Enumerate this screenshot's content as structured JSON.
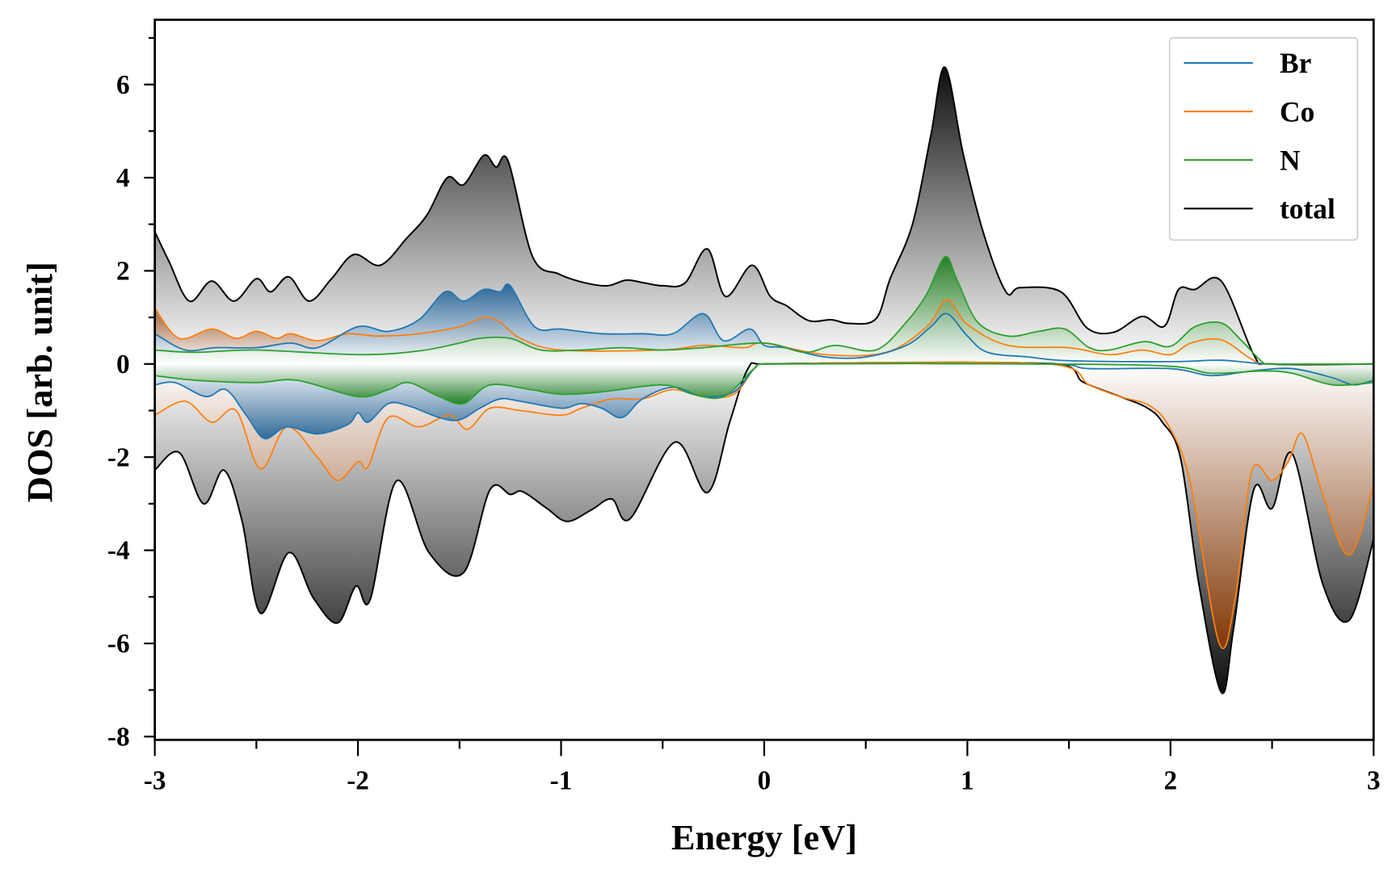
{
  "chart_data": {
    "type": "area",
    "title": "",
    "xlabel": "Energy [eV]",
    "ylabel": "DOS [arb. unit]",
    "xlim": [
      -3,
      3
    ],
    "ylim": [
      -8.07,
      7.39
    ],
    "xticks": [
      -3,
      -2,
      -1,
      0,
      1,
      2,
      3
    ],
    "xtick_labels": [
      "-3",
      "-2",
      "-1",
      "0",
      "1",
      "2",
      "3"
    ],
    "yticks": [
      -8,
      -6,
      -4,
      -2,
      0,
      2,
      4,
      6
    ],
    "ytick_labels": [
      "-8",
      "-6",
      "-4",
      "-2",
      "0",
      "2",
      "4",
      "6"
    ],
    "grid": false,
    "legend_position": "top-right",
    "series": [
      {
        "name": "total",
        "color": "#000000",
        "fill_color": "#000000",
        "up": [
          [
            -3,
            2.84
          ],
          [
            -2.93,
            2.2
          ],
          [
            -2.83,
            1.35
          ],
          [
            -2.72,
            1.78
          ],
          [
            -2.61,
            1.35
          ],
          [
            -2.5,
            1.83
          ],
          [
            -2.43,
            1.55
          ],
          [
            -2.34,
            1.87
          ],
          [
            -2.24,
            1.35
          ],
          [
            -2.13,
            1.83
          ],
          [
            -2.02,
            2.35
          ],
          [
            -1.89,
            2.12
          ],
          [
            -1.76,
            2.7
          ],
          [
            -1.66,
            3.2
          ],
          [
            -1.56,
            4.0
          ],
          [
            -1.48,
            3.85
          ],
          [
            -1.38,
            4.48
          ],
          [
            -1.32,
            4.23
          ],
          [
            -1.26,
            4.35
          ],
          [
            -1.14,
            2.3
          ],
          [
            -1.01,
            1.93
          ],
          [
            -0.88,
            1.74
          ],
          [
            -0.77,
            1.68
          ],
          [
            -0.68,
            1.8
          ],
          [
            -0.59,
            1.74
          ],
          [
            -0.5,
            1.68
          ],
          [
            -0.39,
            1.74
          ],
          [
            -0.28,
            2.47
          ],
          [
            -0.19,
            1.45
          ],
          [
            -0.06,
            2.12
          ],
          [
            0.03,
            1.45
          ],
          [
            0.11,
            1.25
          ],
          [
            0.22,
            0.93
          ],
          [
            0.33,
            0.95
          ],
          [
            0.42,
            0.87
          ],
          [
            0.55,
            0.97
          ],
          [
            0.62,
            1.83
          ],
          [
            0.73,
            3.0
          ],
          [
            0.82,
            4.9
          ],
          [
            0.89,
            6.37
          ],
          [
            0.98,
            4.5
          ],
          [
            1.08,
            2.8
          ],
          [
            1.19,
            1.55
          ],
          [
            1.26,
            1.64
          ],
          [
            1.46,
            1.55
          ],
          [
            1.59,
            0.77
          ],
          [
            1.72,
            0.68
          ],
          [
            1.86,
            1.02
          ],
          [
            1.97,
            0.81
          ],
          [
            2.04,
            1.6
          ],
          [
            2.12,
            1.6
          ],
          [
            2.25,
            1.78
          ],
          [
            2.41,
            0.2
          ],
          [
            2.49,
            0
          ],
          [
            3,
            0
          ]
        ],
        "down": [
          [
            -3,
            -2.28
          ],
          [
            -2.88,
            -1.9
          ],
          [
            -2.76,
            -3.0
          ],
          [
            -2.66,
            -2.28
          ],
          [
            -2.57,
            -3.38
          ],
          [
            -2.48,
            -5.35
          ],
          [
            -2.34,
            -4.05
          ],
          [
            -2.22,
            -5.02
          ],
          [
            -2.1,
            -5.56
          ],
          [
            -2.01,
            -4.77
          ],
          [
            -1.94,
            -5.06
          ],
          [
            -1.81,
            -2.51
          ],
          [
            -1.65,
            -4.05
          ],
          [
            -1.48,
            -4.48
          ],
          [
            -1.35,
            -2.7
          ],
          [
            -1.25,
            -2.8
          ],
          [
            -1.19,
            -2.74
          ],
          [
            -1.07,
            -3.1
          ],
          [
            -0.97,
            -3.38
          ],
          [
            -0.85,
            -3.13
          ],
          [
            -0.75,
            -2.9
          ],
          [
            -0.66,
            -3.32
          ],
          [
            -0.44,
            -1.68
          ],
          [
            -0.28,
            -2.76
          ],
          [
            -0.17,
            -1.25
          ],
          [
            -0.08,
            -0.1
          ],
          [
            0,
            0
          ],
          [
            1.44,
            0
          ],
          [
            1.57,
            -0.39
          ],
          [
            1.74,
            -0.68
          ],
          [
            1.88,
            -0.93
          ],
          [
            1.96,
            -1.25
          ],
          [
            2.05,
            -2.03
          ],
          [
            2.14,
            -4.73
          ],
          [
            2.25,
            -7.05
          ],
          [
            2.31,
            -5.7
          ],
          [
            2.41,
            -2.7
          ],
          [
            2.5,
            -3.1
          ],
          [
            2.6,
            -1.93
          ],
          [
            2.75,
            -4.73
          ],
          [
            2.88,
            -5.5
          ],
          [
            3,
            -3.76
          ]
        ]
      },
      {
        "name": "Co",
        "color": "#ff7f0e",
        "fill_color": "#8b3c05",
        "up": [
          [
            -3,
            1.2
          ],
          [
            -2.88,
            0.55
          ],
          [
            -2.72,
            0.75
          ],
          [
            -2.6,
            0.55
          ],
          [
            -2.5,
            0.7
          ],
          [
            -2.4,
            0.55
          ],
          [
            -2.33,
            0.65
          ],
          [
            -2.2,
            0.5
          ],
          [
            -2.05,
            0.65
          ],
          [
            -1.9,
            0.6
          ],
          [
            -1.7,
            0.65
          ],
          [
            -1.5,
            0.8
          ],
          [
            -1.38,
            1.0
          ],
          [
            -1.3,
            0.9
          ],
          [
            -1.2,
            0.55
          ],
          [
            -1.0,
            0.3
          ],
          [
            -0.5,
            0.3
          ],
          [
            -0.3,
            0.4
          ],
          [
            -0.1,
            0.35
          ],
          [
            0,
            0.45
          ],
          [
            0.3,
            0.2
          ],
          [
            0.6,
            0.25
          ],
          [
            0.8,
            0.8
          ],
          [
            0.9,
            1.38
          ],
          [
            1.0,
            0.85
          ],
          [
            1.2,
            0.4
          ],
          [
            1.5,
            0.35
          ],
          [
            1.7,
            0.2
          ],
          [
            1.86,
            0.3
          ],
          [
            2.0,
            0.2
          ],
          [
            2.1,
            0.45
          ],
          [
            2.25,
            0.52
          ],
          [
            2.4,
            0.1
          ],
          [
            2.5,
            0
          ],
          [
            3,
            0
          ]
        ],
        "down": [
          [
            -3,
            -1.1
          ],
          [
            -2.85,
            -0.8
          ],
          [
            -2.72,
            -1.25
          ],
          [
            -2.6,
            -1.0
          ],
          [
            -2.48,
            -2.25
          ],
          [
            -2.35,
            -1.35
          ],
          [
            -2.2,
            -2.0
          ],
          [
            -2.1,
            -2.5
          ],
          [
            -2.0,
            -2.1
          ],
          [
            -1.95,
            -2.2
          ],
          [
            -1.85,
            -1.15
          ],
          [
            -1.7,
            -1.35
          ],
          [
            -1.55,
            -1.1
          ],
          [
            -1.46,
            -1.4
          ],
          [
            -1.35,
            -0.95
          ],
          [
            -1.2,
            -1.0
          ],
          [
            -1.0,
            -1.1
          ],
          [
            -0.9,
            -0.95
          ],
          [
            -0.75,
            -0.75
          ],
          [
            -0.6,
            -0.75
          ],
          [
            -0.45,
            -0.55
          ],
          [
            -0.3,
            -0.7
          ],
          [
            -0.15,
            -0.65
          ],
          [
            -0.05,
            -0.1
          ],
          [
            0,
            0
          ],
          [
            1.4,
            0
          ],
          [
            1.6,
            -0.45
          ],
          [
            1.75,
            -0.7
          ],
          [
            1.9,
            -0.9
          ],
          [
            2.0,
            -1.4
          ],
          [
            2.1,
            -2.6
          ],
          [
            2.24,
            -6.0
          ],
          [
            2.32,
            -5.0
          ],
          [
            2.4,
            -2.3
          ],
          [
            2.5,
            -2.5
          ],
          [
            2.58,
            -2.1
          ],
          [
            2.65,
            -1.5
          ],
          [
            2.75,
            -2.8
          ],
          [
            2.88,
            -4.1
          ],
          [
            3,
            -2.6
          ]
        ]
      },
      {
        "name": "Br",
        "color": "#1f77b4",
        "fill_color": "#1f5f94",
        "up": [
          [
            -3,
            0.65
          ],
          [
            -2.85,
            0.3
          ],
          [
            -2.7,
            0.35
          ],
          [
            -2.5,
            0.35
          ],
          [
            -2.33,
            0.45
          ],
          [
            -2.2,
            0.35
          ],
          [
            -2.0,
            0.8
          ],
          [
            -1.85,
            0.7
          ],
          [
            -1.7,
            0.95
          ],
          [
            -1.57,
            1.55
          ],
          [
            -1.48,
            1.35
          ],
          [
            -1.38,
            1.6
          ],
          [
            -1.3,
            1.55
          ],
          [
            -1.25,
            1.68
          ],
          [
            -1.13,
            0.8
          ],
          [
            -1.0,
            0.75
          ],
          [
            -0.8,
            0.65
          ],
          [
            -0.6,
            0.65
          ],
          [
            -0.45,
            0.65
          ],
          [
            -0.3,
            1.08
          ],
          [
            -0.2,
            0.5
          ],
          [
            -0.07,
            0.75
          ],
          [
            0,
            0.4
          ],
          [
            0.1,
            0.35
          ],
          [
            0.3,
            0.15
          ],
          [
            0.5,
            0.15
          ],
          [
            0.7,
            0.4
          ],
          [
            0.82,
            0.8
          ],
          [
            0.9,
            1.08
          ],
          [
            1.0,
            0.6
          ],
          [
            1.1,
            0.25
          ],
          [
            1.3,
            0.15
          ],
          [
            1.5,
            0.07
          ],
          [
            2.0,
            0.05
          ],
          [
            2.25,
            0.08
          ],
          [
            2.5,
            0
          ],
          [
            3,
            0
          ]
        ],
        "down": [
          [
            -3,
            -0.45
          ],
          [
            -2.9,
            -0.4
          ],
          [
            -2.75,
            -0.7
          ],
          [
            -2.65,
            -0.55
          ],
          [
            -2.55,
            -1.1
          ],
          [
            -2.46,
            -1.6
          ],
          [
            -2.35,
            -1.35
          ],
          [
            -2.2,
            -1.5
          ],
          [
            -2.05,
            -1.3
          ],
          [
            -2.0,
            -1.05
          ],
          [
            -1.95,
            -1.25
          ],
          [
            -1.85,
            -0.85
          ],
          [
            -1.75,
            -0.9
          ],
          [
            -1.6,
            -1.15
          ],
          [
            -1.5,
            -1.2
          ],
          [
            -1.4,
            -0.95
          ],
          [
            -1.3,
            -0.75
          ],
          [
            -1.2,
            -0.8
          ],
          [
            -1.0,
            -0.95
          ],
          [
            -0.9,
            -0.85
          ],
          [
            -0.8,
            -0.95
          ],
          [
            -0.7,
            -1.15
          ],
          [
            -0.6,
            -0.75
          ],
          [
            -0.45,
            -0.5
          ],
          [
            -0.3,
            -0.7
          ],
          [
            -0.15,
            -0.6
          ],
          [
            -0.05,
            -0.1
          ],
          [
            0,
            0
          ],
          [
            1.4,
            0
          ],
          [
            1.6,
            -0.1
          ],
          [
            2.0,
            -0.1
          ],
          [
            2.2,
            -0.25
          ],
          [
            2.4,
            -0.15
          ],
          [
            2.6,
            -0.1
          ],
          [
            2.8,
            -0.3
          ],
          [
            2.9,
            -0.45
          ],
          [
            3,
            -0.35
          ]
        ]
      },
      {
        "name": "N",
        "color": "#2ca02c",
        "fill_color": "#1a7a1a",
        "up": [
          [
            -3,
            0.3
          ],
          [
            -2.8,
            0.25
          ],
          [
            -2.5,
            0.3
          ],
          [
            -2.0,
            0.2
          ],
          [
            -1.7,
            0.28
          ],
          [
            -1.5,
            0.45
          ],
          [
            -1.4,
            0.55
          ],
          [
            -1.25,
            0.55
          ],
          [
            -1.1,
            0.3
          ],
          [
            -0.9,
            0.3
          ],
          [
            -0.7,
            0.35
          ],
          [
            -0.5,
            0.3
          ],
          [
            -0.3,
            0.35
          ],
          [
            0,
            0.45
          ],
          [
            0.2,
            0.25
          ],
          [
            0.35,
            0.4
          ],
          [
            0.55,
            0.3
          ],
          [
            0.7,
            0.9
          ],
          [
            0.8,
            1.5
          ],
          [
            0.89,
            2.3
          ],
          [
            0.95,
            1.8
          ],
          [
            1.05,
            0.9
          ],
          [
            1.2,
            0.6
          ],
          [
            1.35,
            0.7
          ],
          [
            1.48,
            0.75
          ],
          [
            1.6,
            0.35
          ],
          [
            1.7,
            0.3
          ],
          [
            1.87,
            0.48
          ],
          [
            2.0,
            0.38
          ],
          [
            2.12,
            0.8
          ],
          [
            2.25,
            0.88
          ],
          [
            2.35,
            0.5
          ],
          [
            2.45,
            0.05
          ],
          [
            2.5,
            0
          ],
          [
            3,
            0
          ]
        ],
        "down": [
          [
            -3,
            -0.25
          ],
          [
            -2.8,
            -0.35
          ],
          [
            -2.5,
            -0.4
          ],
          [
            -2.3,
            -0.35
          ],
          [
            -2.0,
            -0.7
          ],
          [
            -1.85,
            -0.55
          ],
          [
            -1.75,
            -0.4
          ],
          [
            -1.6,
            -0.7
          ],
          [
            -1.48,
            -0.85
          ],
          [
            -1.35,
            -0.45
          ],
          [
            -1.15,
            -0.55
          ],
          [
            -1.0,
            -0.65
          ],
          [
            -0.8,
            -0.6
          ],
          [
            -0.5,
            -0.45
          ],
          [
            -0.35,
            -0.65
          ],
          [
            -0.2,
            -0.7
          ],
          [
            -0.05,
            -0.1
          ],
          [
            0,
            0
          ],
          [
            1.4,
            0
          ],
          [
            2.0,
            -0.05
          ],
          [
            2.2,
            -0.2
          ],
          [
            2.45,
            -0.15
          ],
          [
            2.6,
            -0.2
          ],
          [
            2.8,
            -0.45
          ],
          [
            3,
            -0.4
          ]
        ]
      }
    ],
    "legend": [
      {
        "label": "Br",
        "color": "#1f77b4"
      },
      {
        "label": "Co",
        "color": "#ff7f0e"
      },
      {
        "label": "N",
        "color": "#2ca02c"
      },
      {
        "label": "total",
        "color": "#000000"
      }
    ]
  }
}
